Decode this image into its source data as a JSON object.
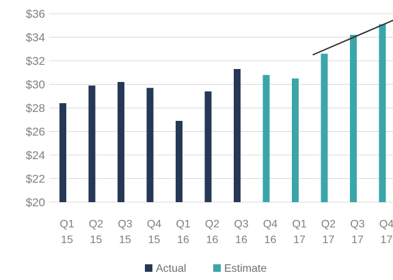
{
  "chart_data": {
    "type": "bar",
    "title": "",
    "xlabel": "",
    "ylabel": "",
    "ylim": [
      20,
      36
    ],
    "yticks": [
      20,
      22,
      24,
      26,
      28,
      30,
      32,
      34,
      36
    ],
    "ytick_labels": [
      "$20",
      "$22",
      "$24",
      "$26",
      "$28",
      "$30",
      "$32",
      "$34",
      "$36"
    ],
    "grid": true,
    "legend_position": "bottom",
    "categories": [
      [
        "Q1",
        "15"
      ],
      [
        "Q2",
        "15"
      ],
      [
        "Q3",
        "15"
      ],
      [
        "Q4",
        "15"
      ],
      [
        "Q1",
        "16"
      ],
      [
        "Q2",
        "16"
      ],
      [
        "Q3",
        "16"
      ],
      [
        "Q4",
        "16"
      ],
      [
        "Q1",
        "17"
      ],
      [
        "Q2",
        "17"
      ],
      [
        "Q3",
        "17"
      ],
      [
        "Q4",
        "17"
      ]
    ],
    "series": [
      {
        "name": "Actual",
        "color": "#253856",
        "values": [
          28.4,
          29.9,
          30.2,
          29.7,
          26.9,
          29.4,
          31.3,
          null,
          null,
          null,
          null,
          null
        ]
      },
      {
        "name": "Estimate",
        "color": "#3aa6a8",
        "values": [
          null,
          null,
          null,
          null,
          null,
          null,
          null,
          30.8,
          30.5,
          32.6,
          34.2,
          35.1
        ]
      }
    ],
    "annotation": {
      "type": "arrow",
      "color": "#333333",
      "from": {
        "category_index": 8.6,
        "value": 32.5
      },
      "to": {
        "category_index": 11.9,
        "value": 36.0
      }
    }
  }
}
